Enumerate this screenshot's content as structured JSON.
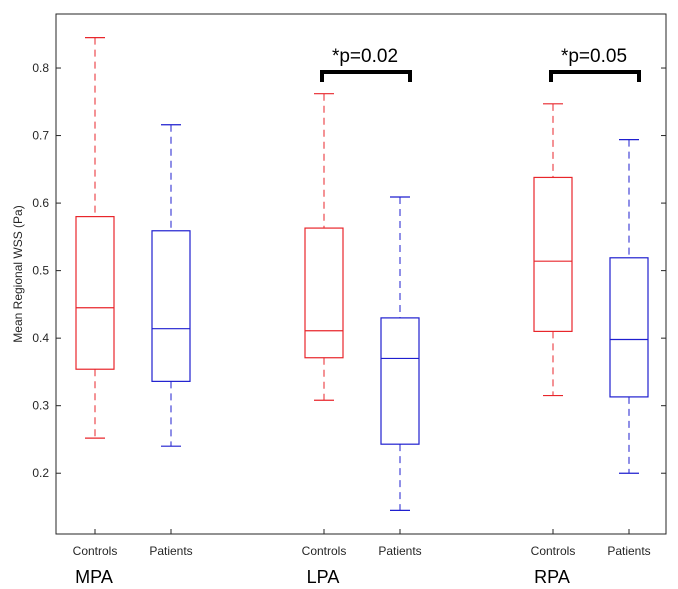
{
  "chart_data": {
    "type": "boxplot",
    "ylabel": "Mean Regional WSS (Pa)",
    "ylim": [
      0.11,
      0.88
    ],
    "yticks": [
      0.2,
      0.3,
      0.4,
      0.5,
      0.6,
      0.7,
      0.8
    ],
    "ytick_labels": [
      "0.2",
      "0.3",
      "0.4",
      "0.5",
      "0.6",
      "0.7",
      "0.8"
    ],
    "colors": {
      "controls": "#e8262b",
      "patients": "#1f1fcf",
      "bracket": "#000000"
    },
    "groups": [
      {
        "name": "MPA",
        "boxes": [
          {
            "label": "Controls",
            "series": "controls",
            "min": 0.252,
            "q1": 0.354,
            "median": 0.445,
            "q3": 0.58,
            "max": 0.845
          },
          {
            "label": "Patients",
            "series": "patients",
            "min": 0.24,
            "q1": 0.336,
            "median": 0.414,
            "q3": 0.559,
            "max": 0.716
          }
        ]
      },
      {
        "name": "LPA",
        "annotation": "*p=0.02",
        "boxes": [
          {
            "label": "Controls",
            "series": "controls",
            "min": 0.308,
            "q1": 0.371,
            "median": 0.411,
            "q3": 0.563,
            "max": 0.762
          },
          {
            "label": "Patients",
            "series": "patients",
            "min": 0.145,
            "q1": 0.243,
            "median": 0.37,
            "q3": 0.43,
            "max": 0.609
          }
        ]
      },
      {
        "name": "RPA",
        "annotation": "*p=0.05",
        "boxes": [
          {
            "label": "Controls",
            "series": "controls",
            "min": 0.315,
            "q1": 0.41,
            "median": 0.514,
            "q3": 0.638,
            "max": 0.747
          },
          {
            "label": "Patients",
            "series": "patients",
            "min": 0.2,
            "q1": 0.313,
            "median": 0.398,
            "q3": 0.519,
            "max": 0.694
          }
        ]
      }
    ]
  }
}
